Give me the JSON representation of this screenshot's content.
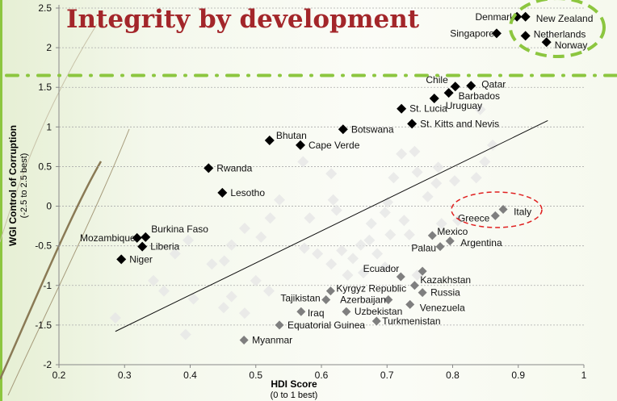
{
  "title": "Integrity by development",
  "colors": {
    "title": "#a3262a",
    "highlight_green": "#8cc63f",
    "highlight_red": "#e02020",
    "upper_series": "#000000",
    "lower_series": "#7f7f7f",
    "background_points": "#e6e6e6"
  },
  "chart_data": {
    "type": "scatter",
    "title": "Integrity by development",
    "xlabel": "HDI Score",
    "xlabel_sub": "(0 to 1 best)",
    "ylabel": "WGI Control of Corruption",
    "ylabel_sub": "(-2.5 to 2.5 best)",
    "xlim": [
      0.2,
      1
    ],
    "ylim": [
      -2,
      2.5
    ],
    "xticks": [
      "0.2",
      "0.3",
      "0.4",
      "0.5",
      "0.6",
      "0.7",
      "0.8",
      "0.9",
      "1"
    ],
    "yticks": [
      "-2",
      "-1.5",
      "-1",
      "-0.5",
      "0",
      "0.5",
      "1",
      "1.5",
      "2",
      "2.5"
    ],
    "grid": "horizontal dashed",
    "legend": "none",
    "trend_line": {
      "from": [
        0.286,
        -1.58
      ],
      "to": [
        0.945,
        1.08
      ]
    },
    "threshold_line_y": 1.65,
    "series": [
      {
        "color": "#000000",
        "points": [
          {
            "label": "Denmark",
            "x": 0.898,
            "y": 2.39
          },
          {
            "label": "New Zealand",
            "x": 0.911,
            "y": 2.39
          },
          {
            "label": "Singapore",
            "x": 0.867,
            "y": 2.18
          },
          {
            "label": "Netherlands",
            "x": 0.911,
            "y": 2.15
          },
          {
            "label": "Norway",
            "x": 0.943,
            "y": 2.07
          },
          {
            "label": "Chile",
            "x": 0.804,
            "y": 1.51
          },
          {
            "label": "Qatar",
            "x": 0.828,
            "y": 1.52
          },
          {
            "label": "Barbados",
            "x": 0.794,
            "y": 1.43
          },
          {
            "label": "Uruguay",
            "x": 0.772,
            "y": 1.36
          },
          {
            "label": "St. Lucia",
            "x": 0.722,
            "y": 1.23
          },
          {
            "label": "St. Kitts and Nevis",
            "x": 0.738,
            "y": 1.04
          },
          {
            "label": "Botswana",
            "x": 0.633,
            "y": 0.97
          },
          {
            "label": "Bhutan",
            "x": 0.521,
            "y": 0.83
          },
          {
            "label": "Cape Verde",
            "x": 0.568,
            "y": 0.77
          },
          {
            "label": "Rwanda",
            "x": 0.428,
            "y": 0.48
          },
          {
            "label": "Lesotho",
            "x": 0.449,
            "y": 0.17
          },
          {
            "label": "Burkina Faso",
            "x": 0.332,
            "y": -0.39
          },
          {
            "label": "Mozambique",
            "x": 0.319,
            "y": -0.4
          },
          {
            "label": "Liberia",
            "x": 0.327,
            "y": -0.51
          },
          {
            "label": "Niger",
            "x": 0.295,
            "y": -0.67
          }
        ]
      },
      {
        "color": "#7f7f7f",
        "points": [
          {
            "label": "Italy",
            "x": 0.877,
            "y": -0.04
          },
          {
            "label": "Greece",
            "x": 0.865,
            "y": -0.12
          },
          {
            "label": "Mexico",
            "x": 0.769,
            "y": -0.37
          },
          {
            "label": "Argentina",
            "x": 0.796,
            "y": -0.44
          },
          {
            "label": "Palau",
            "x": 0.781,
            "y": -0.51
          },
          {
            "label": "Ecuador",
            "x": 0.721,
            "y": -0.89
          },
          {
            "label": "",
            "x": 0.754,
            "y": -0.82
          },
          {
            "label": "Kazakhstan",
            "x": 0.742,
            "y": -1.0
          },
          {
            "label": "Russia",
            "x": 0.754,
            "y": -1.09
          },
          {
            "label": "Kyrgyz Republic",
            "x": 0.614,
            "y": -1.07
          },
          {
            "label": "Tajikistan",
            "x": 0.607,
            "y": -1.18
          },
          {
            "label": "Azerbaijan",
            "x": 0.702,
            "y": -1.18
          },
          {
            "label": "Iraq",
            "x": 0.569,
            "y": -1.33
          },
          {
            "label": "Uzbekistan",
            "x": 0.638,
            "y": -1.33
          },
          {
            "label": "Venezuela",
            "x": 0.735,
            "y": -1.24
          },
          {
            "label": "Turkmenistan",
            "x": 0.684,
            "y": -1.45
          },
          {
            "label": "Equatorial Guinea",
            "x": 0.536,
            "y": -1.5
          },
          {
            "label": "Myanmar",
            "x": 0.482,
            "y": -1.69
          }
        ]
      }
    ],
    "background_points": [
      [
        0.536,
        0.08
      ],
      [
        0.582,
        -0.15
      ],
      [
        0.522,
        -0.15
      ],
      [
        0.483,
        -0.28
      ],
      [
        0.463,
        -0.49
      ],
      [
        0.508,
        -0.39
      ],
      [
        0.433,
        -0.73
      ],
      [
        0.452,
        -0.69
      ],
      [
        0.5,
        -0.94
      ],
      [
        0.52,
        -1.07
      ],
      [
        0.463,
        -1.14
      ],
      [
        0.451,
        -1.28
      ],
      [
        0.483,
        -1.35
      ],
      [
        0.405,
        -1.17
      ],
      [
        0.574,
        -0.53
      ],
      [
        0.594,
        -0.6
      ],
      [
        0.615,
        -0.73
      ],
      [
        0.631,
        -0.56
      ],
      [
        0.66,
        -0.49
      ],
      [
        0.676,
        -0.22
      ],
      [
        0.697,
        -0.08
      ],
      [
        0.701,
        0.05
      ],
      [
        0.71,
        0.36
      ],
      [
        0.746,
        0.43
      ],
      [
        0.762,
        0.12
      ],
      [
        0.775,
        0.29
      ],
      [
        0.618,
        0.08
      ],
      [
        0.623,
        -0.05
      ],
      [
        0.726,
        -0.18
      ],
      [
        0.734,
        -0.36
      ],
      [
        0.685,
        -0.6
      ],
      [
        0.648,
        -0.66
      ],
      [
        0.705,
        -0.36
      ],
      [
        0.673,
        -0.43
      ],
      [
        0.742,
        0.69
      ],
      [
        0.722,
        0.66
      ],
      [
        0.778,
        0.49
      ],
      [
        0.803,
        0.32
      ],
      [
        0.808,
        -0.18
      ],
      [
        0.783,
        -0.22
      ],
      [
        0.746,
        -0.87
      ],
      [
        0.697,
        -0.77
      ],
      [
        0.664,
        -0.84
      ],
      [
        0.64,
        -0.87
      ],
      [
        0.344,
        -0.94
      ],
      [
        0.36,
        -1.07
      ],
      [
        0.286,
        -1.41
      ],
      [
        0.397,
        -0.43
      ],
      [
        0.377,
        -0.6
      ],
      [
        0.842,
        1.22
      ],
      [
        0.849,
        0.56
      ],
      [
        0.836,
        0.36
      ],
      [
        0.861,
        0.77
      ],
      [
        0.615,
        0.41
      ],
      [
        0.572,
        0.56
      ],
      [
        0.393,
        -1.62
      ]
    ]
  }
}
